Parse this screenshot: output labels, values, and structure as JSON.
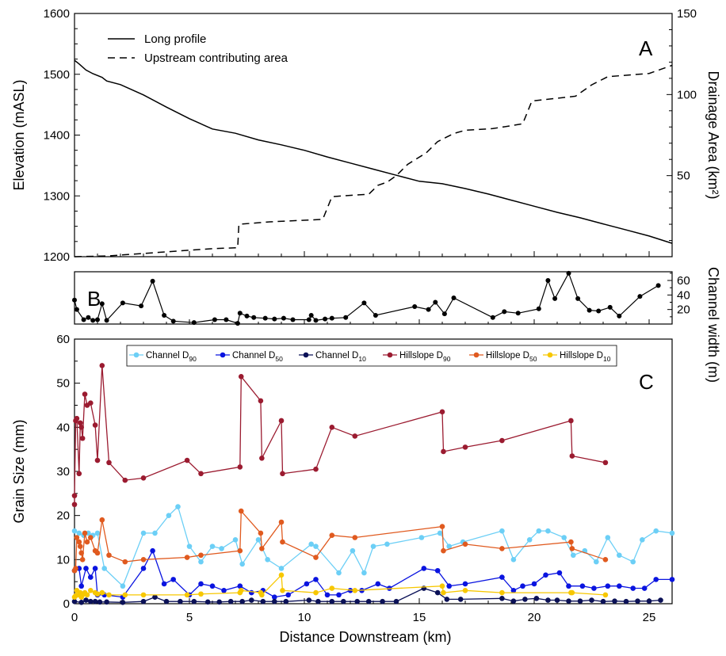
{
  "chart_data": [
    {
      "id": "A",
      "type": "line",
      "panel_label": "A",
      "xlabel": "Distance Downstream (km)",
      "ylabel": "Elevation (mASL)",
      "ylabel_right": "Drainage Area (km²)",
      "xlim": [
        0,
        26
      ],
      "ylim": [
        1200,
        1600
      ],
      "ylim_right": [
        0,
        150
      ],
      "yticks": [
        "1200",
        "1300",
        "1400",
        "1500",
        "1600"
      ],
      "yticks_right": [
        "50",
        "100",
        "150"
      ],
      "legend_position": "top-left",
      "series": [
        {
          "name": "Long profile",
          "axis": "left",
          "style": "solid",
          "x": [
            0,
            0.2,
            0.5,
            0.8,
            1.2,
            1.4,
            2,
            3,
            4,
            5,
            6,
            7,
            8,
            9,
            10,
            11,
            12,
            13,
            14,
            15,
            16,
            17,
            18,
            19,
            20,
            21,
            22,
            23,
            24,
            25,
            26
          ],
          "y": [
            1523,
            1517,
            1507,
            1501,
            1495,
            1489,
            1483,
            1466,
            1446,
            1427,
            1410,
            1403,
            1392,
            1384,
            1375,
            1364,
            1354,
            1344,
            1334,
            1324,
            1320,
            1312,
            1303,
            1293,
            1283,
            1273,
            1264,
            1254,
            1244,
            1234,
            1222
          ]
        },
        {
          "name": "Upstream contributing area",
          "axis": "right",
          "style": "dashed",
          "x": [
            0,
            1.5,
            2.5,
            4,
            5,
            6,
            7.1,
            7.15,
            8.5,
            10.8,
            11.2,
            11.6,
            12.8,
            13.2,
            13.6,
            14,
            14.5,
            15.3,
            15.8,
            16.5,
            17,
            18.2,
            19.1,
            19.5,
            19.9,
            21.2,
            21.8,
            22.5,
            23.2,
            25,
            26
          ],
          "y": [
            0,
            0.5,
            1.5,
            3,
            4,
            5,
            5.5,
            20,
            21.5,
            23,
            37,
            37.5,
            38.5,
            44,
            46,
            50,
            57,
            64,
            71,
            76,
            78,
            79,
            81,
            82,
            96,
            98,
            99,
            106,
            111,
            113,
            118
          ]
        }
      ]
    },
    {
      "id": "B",
      "type": "line",
      "panel_label": "B",
      "ylabel_right": "Channel width (m)",
      "xlim": [
        0,
        26
      ],
      "ylim": [
        0,
        72
      ],
      "yticks_right": [
        "20",
        "40",
        "60"
      ],
      "series": [
        {
          "name": "",
          "x": [
            0,
            0.1,
            0.4,
            0.6,
            0.8,
            1.0,
            1.2,
            1.4,
            2.1,
            2.9,
            3.4,
            3.9,
            4.3,
            5.2,
            6.1,
            6.6,
            7.1,
            7.2,
            7.5,
            7.8,
            8.3,
            8.7,
            9.1,
            9.5,
            10.2,
            10.3,
            10.5,
            10.9,
            11.2,
            11.8,
            12.6,
            13.1,
            14.8,
            15.4,
            15.7,
            16.1,
            16.5,
            18.2,
            18.7,
            19.3,
            20.2,
            20.6,
            20.9,
            21.5,
            21.9,
            22.4,
            22.8,
            23.3,
            23.7,
            24.6,
            25.4
          ],
          "y": [
            33,
            20,
            6,
            9,
            5,
            6,
            28,
            5,
            29,
            25,
            59,
            12,
            4,
            2,
            6,
            6,
            1,
            15,
            11,
            9,
            8,
            7,
            8,
            6,
            6,
            12,
            5,
            7,
            8,
            9,
            29,
            12,
            24,
            20,
            30,
            14,
            36,
            9,
            17,
            15,
            21,
            60,
            35,
            70,
            35,
            19,
            18,
            23,
            11,
            38,
            53
          ]
        }
      ]
    },
    {
      "id": "C",
      "type": "line",
      "panel_label": "C",
      "xlabel": "Distance Downstream (km)",
      "ylabel": "Grain Size (mm)",
      "xlim": [
        0,
        26
      ],
      "ylim": [
        0,
        60
      ],
      "xticks": [
        "0",
        "5",
        "10",
        "15",
        "20",
        "25"
      ],
      "yticks": [
        "0",
        "10",
        "20",
        "30",
        "40",
        "50",
        "60"
      ],
      "legend_position": "top",
      "series": [
        {
          "name": "Channel D90",
          "label": "Channel D",
          "sub": "90",
          "color": "#6ccff6",
          "x": [
            0,
            0.2,
            0.4,
            0.6,
            0.8,
            1.0,
            1.3,
            2.1,
            3.0,
            3.5,
            4.1,
            4.5,
            5.0,
            5.5,
            6.0,
            6.4,
            7.0,
            7.3,
            8.0,
            8.4,
            9.0,
            10.3,
            10.5,
            11.5,
            12.1,
            12.6,
            13.0,
            13.6,
            15.1,
            15.9,
            16.3,
            16.9,
            18.6,
            19.1,
            19.8,
            20.2,
            20.6,
            21.3,
            21.7,
            22.2,
            22.7,
            23.2,
            23.7,
            24.3,
            24.7,
            25.3,
            26
          ],
          "y": [
            16.5,
            16,
            15.5,
            16,
            15.5,
            16,
            8,
            4,
            16,
            16,
            20,
            22,
            13,
            9.5,
            13,
            12.5,
            14.5,
            9,
            14.5,
            10,
            8,
            13.5,
            13,
            7,
            12,
            7,
            13,
            13.5,
            15,
            16,
            13,
            14,
            16.5,
            10,
            14.5,
            16.5,
            16.5,
            15,
            11,
            12,
            9.5,
            15,
            11,
            9.5,
            14.5,
            16.5,
            16
          ]
        },
        {
          "name": "Channel D50",
          "label": "Channel D",
          "sub": "50",
          "color": "#0a14e0",
          "x": [
            0,
            0.2,
            0.3,
            0.5,
            0.7,
            0.9,
            1.0,
            1.3,
            2.1,
            3.0,
            3.4,
            3.9,
            4.3,
            5.0,
            5.5,
            6.0,
            6.5,
            7.2,
            7.7,
            8.2,
            8.7,
            9.3,
            10.1,
            10.5,
            11.0,
            11.5,
            12.0,
            12.5,
            13.2,
            13.7,
            15.2,
            15.8,
            16.3,
            17.0,
            18.6,
            19.1,
            19.5,
            20.0,
            20.5,
            21.1,
            21.5,
            22.1,
            22.6,
            23.2,
            23.7,
            24.3,
            24.8,
            25.3,
            26
          ],
          "y": [
            7.5,
            8,
            4,
            8,
            6,
            8,
            2,
            2,
            1.5,
            8,
            12,
            4.5,
            5.5,
            2,
            4.5,
            4,
            3,
            4,
            2.5,
            3,
            1.5,
            2,
            4.5,
            5.5,
            2,
            2,
            3,
            3,
            4.5,
            3.5,
            8,
            7.5,
            4,
            4.5,
            6,
            3,
            4,
            4.5,
            6.5,
            7,
            4,
            4,
            3.5,
            4,
            4,
            3.5,
            3.5,
            5.5,
            5.5
          ]
        },
        {
          "name": "Channel D10",
          "label": "Channel D",
          "sub": "10",
          "color": "#0b1157",
          "x": [
            0,
            0.3,
            0.5,
            0.7,
            0.9,
            1.1,
            1.4,
            2.1,
            3.0,
            3.5,
            4.0,
            4.6,
            5.2,
            5.8,
            6.3,
            6.8,
            7.3,
            7.7,
            8.2,
            8.7,
            9.2,
            10.2,
            10.6,
            11.2,
            11.7,
            12.3,
            12.8,
            13.4,
            14.0,
            15.2,
            15.8,
            16.2,
            16.8,
            18.6,
            19.1,
            19.6,
            20.1,
            20.6,
            21.0,
            21.5,
            22.0,
            22.5,
            23.0,
            23.5,
            24.0,
            24.5,
            25.0,
            25.5
          ],
          "y": [
            0.5,
            0.3,
            0.8,
            0.5,
            0.5,
            0.4,
            0.4,
            0.3,
            0.5,
            1.5,
            0.5,
            0.5,
            0.5,
            0.4,
            0.4,
            0.5,
            0.5,
            0.8,
            0.5,
            0.5,
            0.5,
            0.8,
            0.5,
            0.5,
            0.5,
            0.5,
            0.5,
            0.5,
            0.5,
            3.5,
            2.5,
            1,
            1,
            1.2,
            0.6,
            1,
            1.2,
            0.8,
            0.8,
            0.6,
            0.6,
            0.8,
            0.5,
            0.6,
            0.5,
            0.6,
            0.6,
            0.8
          ]
        },
        {
          "name": "Hillslope D90",
          "label": "Hillslope D",
          "sub": "90",
          "color": "#9b1b30",
          "x": [
            0,
            0,
            0.05,
            0.1,
            0.2,
            0.25,
            0.3,
            0.35,
            0.45,
            0.55,
            0.7,
            0.9,
            1.0,
            1.2,
            1.5,
            2.2,
            3.0,
            4.9,
            5.5,
            7.2,
            7.25,
            8.1,
            8.15,
            9.0,
            9.05,
            10.5,
            11.2,
            12.2,
            16.0,
            16.05,
            17.0,
            18.6,
            21.6,
            21.65,
            23.1
          ],
          "y": [
            22.5,
            24.5,
            41.5,
            42,
            29.5,
            41,
            40,
            37.5,
            47.5,
            45,
            45.5,
            40.5,
            32.5,
            54,
            32,
            28,
            28.5,
            32.5,
            29.5,
            31,
            51.5,
            46,
            33,
            41.5,
            29.5,
            30.5,
            40,
            38,
            43.5,
            34.5,
            35.5,
            37,
            41.5,
            33.5,
            32
          ]
        },
        {
          "name": "Hillslope D50",
          "label": "Hillslope D",
          "sub": "50",
          "color": "#e05a1f",
          "x": [
            0,
            0.05,
            0.1,
            0.2,
            0.25,
            0.3,
            0.35,
            0.45,
            0.55,
            0.7,
            0.9,
            1.0,
            1.2,
            1.5,
            2.2,
            3.0,
            4.9,
            5.5,
            7.2,
            7.25,
            8.1,
            8.15,
            9.0,
            9.05,
            10.5,
            11.2,
            12.2,
            16.0,
            16.05,
            17.0,
            18.6,
            21.6,
            21.65,
            23.1
          ],
          "y": [
            7.5,
            8,
            15,
            14,
            13,
            11.5,
            10,
            16,
            14,
            15,
            12,
            11.5,
            19,
            11,
            9.5,
            10,
            10.5,
            11,
            12,
            21,
            16,
            12.5,
            18.5,
            14,
            10.5,
            15.5,
            15,
            17.5,
            12,
            13.5,
            12.5,
            14,
            12.5,
            10
          ]
        },
        {
          "name": "Hillslope D10",
          "label": "Hillslope D",
          "sub": "10",
          "color": "#f7c700",
          "x": [
            0,
            0.05,
            0.1,
            0.2,
            0.25,
            0.3,
            0.35,
            0.45,
            0.55,
            0.7,
            0.9,
            1.0,
            1.2,
            1.5,
            2.2,
            3.0,
            4.9,
            5.5,
            7.2,
            7.25,
            8.1,
            8.15,
            9.0,
            9.05,
            10.5,
            11.2,
            12.2,
            16.0,
            16.05,
            17.0,
            18.6,
            21.6,
            21.65,
            23.1
          ],
          "y": [
            1.5,
            1.8,
            3,
            2,
            2.5,
            1.5,
            2,
            2.5,
            2,
            3,
            2.5,
            2.2,
            2.5,
            2,
            2,
            2,
            2,
            2.2,
            2.5,
            3,
            2.5,
            2,
            6.5,
            3,
            2.5,
            3.5,
            3,
            4,
            2.5,
            3,
            2.5,
            2.5,
            2.5,
            2
          ]
        }
      ]
    }
  ]
}
